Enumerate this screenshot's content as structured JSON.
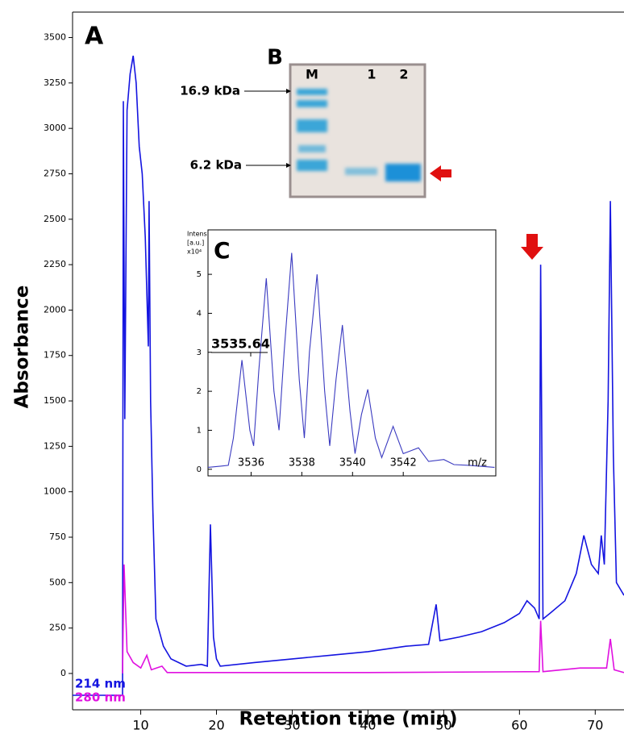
{
  "chart_data": [
    {
      "type": "line",
      "panel_label": "A",
      "xlabel": "Retention time (min)",
      "ylabel": "Absorbance",
      "xlim": [
        1,
        73.8
      ],
      "ylim": [
        -200,
        3640
      ],
      "xticks": [
        10,
        20,
        30,
        40,
        50,
        60,
        70
      ],
      "yticks": [
        0,
        250,
        500,
        750,
        1000,
        1250,
        1500,
        1750,
        2000,
        2250,
        2500,
        2750,
        3000,
        3250,
        3500
      ],
      "legend": "lower left",
      "series": [
        {
          "name": "214 nm",
          "color": "#1414e0",
          "x": [
            1,
            7.6,
            7.7,
            7.9,
            8.2,
            8.6,
            9,
            9.4,
            9.8,
            10.2,
            10.6,
            11,
            11.1,
            11.3,
            11.6,
            12,
            13,
            14,
            16,
            18,
            18.8,
            19.2,
            19.6,
            20,
            20.5,
            25,
            30,
            35,
            40,
            45,
            48,
            49,
            49.5,
            52,
            55,
            58,
            60,
            61,
            62,
            62.6,
            62.8,
            63.1,
            64,
            66,
            67.5,
            68.5,
            69.5,
            70.4,
            70.8,
            71.2,
            71.7,
            72,
            72.4,
            72.8,
            73.8
          ],
          "values": [
            -120,
            -120,
            3150,
            1400,
            3100,
            3300,
            3400,
            3250,
            2900,
            2750,
            2400,
            1800,
            2600,
            1500,
            900,
            300,
            150,
            80,
            40,
            50,
            40,
            820,
            200,
            80,
            40,
            60,
            80,
            100,
            120,
            150,
            160,
            380,
            180,
            200,
            230,
            280,
            330,
            400,
            360,
            300,
            2250,
            300,
            330,
            400,
            550,
            760,
            600,
            550,
            760,
            600,
            1500,
            2600,
            1200,
            500,
            430
          ]
        },
        {
          "name": "280 nm",
          "color": "#e010e0",
          "x": [
            7.6,
            7.8,
            8.2,
            9,
            10,
            10.8,
            11.4,
            12.8,
            13.5,
            20,
            40,
            62.6,
            62.8,
            63.1,
            68,
            71.5,
            72,
            72.5,
            73.8
          ],
          "values": [
            0,
            600,
            120,
            60,
            30,
            100,
            20,
            40,
            5,
            5,
            5,
            10,
            290,
            10,
            30,
            30,
            190,
            20,
            5
          ]
        }
      ]
    },
    {
      "type": "line",
      "panel_label": "C",
      "xlabel": "m/z",
      "ylabel": [
        "Intens.",
        "[a.u.]",
        "x10⁴"
      ],
      "annotation": "3535.64",
      "xlim": [
        3534.3,
        3545.65
      ],
      "ylim": [
        -0.17,
        6.14
      ],
      "xticks": [
        3536,
        3538,
        3540,
        3542
      ],
      "yticks": [
        0,
        1,
        2,
        3,
        4,
        5
      ],
      "series": [
        {
          "color": "#3a3ac0",
          "x": [
            3534.3,
            3534.8,
            3535.1,
            3535.3,
            3535.64,
            3535.95,
            3536.1,
            3536.3,
            3536.6,
            3536.9,
            3537.1,
            3537.3,
            3537.6,
            3537.9,
            3538.1,
            3538.3,
            3538.6,
            3538.9,
            3539.1,
            3539.35,
            3539.6,
            3539.9,
            3540.1,
            3540.35,
            3540.6,
            3540.9,
            3541.15,
            3541.6,
            3542.0,
            3542.6,
            3543.0,
            3543.6,
            3544.0,
            3544.6,
            3545.6
          ],
          "values": [
            0.05,
            0.08,
            0.1,
            0.8,
            2.8,
            1.0,
            0.6,
            2.5,
            4.9,
            2.0,
            1.0,
            3.0,
            5.55,
            2.3,
            0.8,
            3.0,
            5.0,
            2.0,
            0.6,
            2.3,
            3.7,
            1.5,
            0.4,
            1.4,
            2.05,
            0.8,
            0.3,
            1.1,
            0.4,
            0.55,
            0.2,
            0.25,
            0.12,
            0.1,
            0.05
          ]
        }
      ]
    }
  ],
  "gel": {
    "panel_label": "B",
    "lanes": [
      "M",
      "1",
      "2"
    ],
    "markers": [
      "16.9 kDa",
      "6.2 kDa"
    ]
  }
}
